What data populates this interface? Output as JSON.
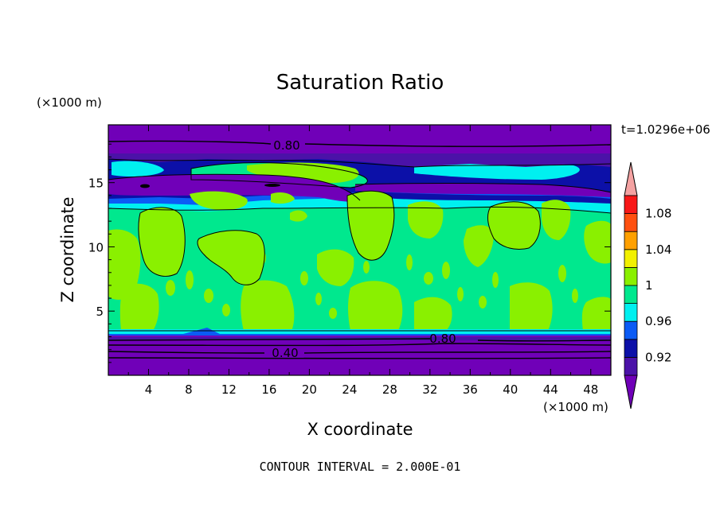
{
  "chart_data": {
    "type": "contour",
    "title": "Saturation Ratio",
    "xlabel": "X coordinate",
    "ylabel": "Z coordinate",
    "x_unit": "(×1000 m)",
    "z_unit": "(×1000 m)",
    "time_label": "t=1.0296e+06",
    "footer": "CONTOUR INTERVAL = 2.000E-01",
    "xlim": [
      0,
      50
    ],
    "zlim": [
      0,
      19.5
    ],
    "x_ticks": [
      "4",
      "8",
      "12",
      "16",
      "20",
      "24",
      "28",
      "32",
      "36",
      "40",
      "44",
      "48"
    ],
    "z_ticks": [
      "5",
      "10",
      "15"
    ],
    "contour_labels": [
      "0.80",
      "0.80",
      "0.40"
    ],
    "colorbar": {
      "labels": [
        "0.92",
        "0.96",
        "1",
        "1.04",
        "1.08"
      ],
      "levels": [
        {
          "from": null,
          "to": 0.9,
          "color": "#7000b8"
        },
        {
          "from": 0.9,
          "to": 0.92,
          "color": "#4b12a8"
        },
        {
          "from": 0.92,
          "to": 0.94,
          "color": "#0c10a8"
        },
        {
          "from": 0.94,
          "to": 0.96,
          "color": "#0b5bf5"
        },
        {
          "from": 0.96,
          "to": 0.98,
          "color": "#00f0f0"
        },
        {
          "from": 0.98,
          "to": 1.0,
          "color": "#00e88e"
        },
        {
          "from": 1.0,
          "to": 1.02,
          "color": "#8af000"
        },
        {
          "from": 1.02,
          "to": 1.04,
          "color": "#f2f000"
        },
        {
          "from": 1.04,
          "to": 1.06,
          "color": "#ffa000"
        },
        {
          "from": 1.06,
          "to": 1.08,
          "color": "#ff5010"
        },
        {
          "from": 1.08,
          "to": 1.1,
          "color": "#f81818"
        },
        {
          "from": 1.1,
          "to": null,
          "color": "#f4a2a2"
        }
      ]
    }
  }
}
